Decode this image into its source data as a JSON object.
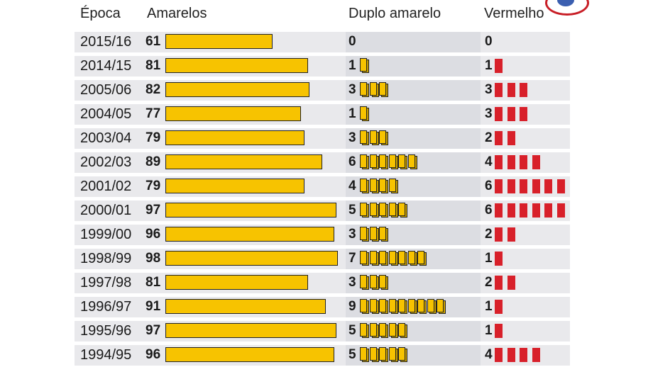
{
  "headers": {
    "season": "Época",
    "yellow": "Amarelos",
    "double": "Duplo amarelo",
    "red": "Vermelho"
  },
  "colors": {
    "yellow": "#f7c300",
    "red": "#d8202a",
    "row_bg": "#e9e9ec"
  },
  "logo_icon": "club-crest-icon",
  "chart_data": {
    "type": "table",
    "columns": [
      "Época",
      "Amarelos",
      "Duplo amarelo",
      "Vermelho"
    ],
    "rows": [
      {
        "season": "2015/16",
        "yellow": 61,
        "double": 0,
        "red": 0
      },
      {
        "season": "2014/15",
        "yellow": 81,
        "double": 1,
        "red": 1
      },
      {
        "season": "2005/06",
        "yellow": 82,
        "double": 3,
        "red": 3
      },
      {
        "season": "2004/05",
        "yellow": 77,
        "double": 1,
        "red": 3
      },
      {
        "season": "2003/04",
        "yellow": 79,
        "double": 3,
        "red": 2
      },
      {
        "season": "2002/03",
        "yellow": 89,
        "double": 6,
        "red": 4
      },
      {
        "season": "2001/02",
        "yellow": 79,
        "double": 4,
        "red": 6
      },
      {
        "season": "2000/01",
        "yellow": 97,
        "double": 5,
        "red": 6
      },
      {
        "season": "1999/00",
        "yellow": 96,
        "double": 3,
        "red": 2
      },
      {
        "season": "1998/99",
        "yellow": 98,
        "double": 7,
        "red": 1
      },
      {
        "season": "1997/98",
        "yellow": 81,
        "double": 3,
        "red": 2
      },
      {
        "season": "1996/97",
        "yellow": 91,
        "double": 9,
        "red": 1
      },
      {
        "season": "1995/96",
        "yellow": 97,
        "double": 5,
        "red": 1
      },
      {
        "season": "1994/95",
        "yellow": 96,
        "double": 5,
        "red": 4
      }
    ]
  }
}
